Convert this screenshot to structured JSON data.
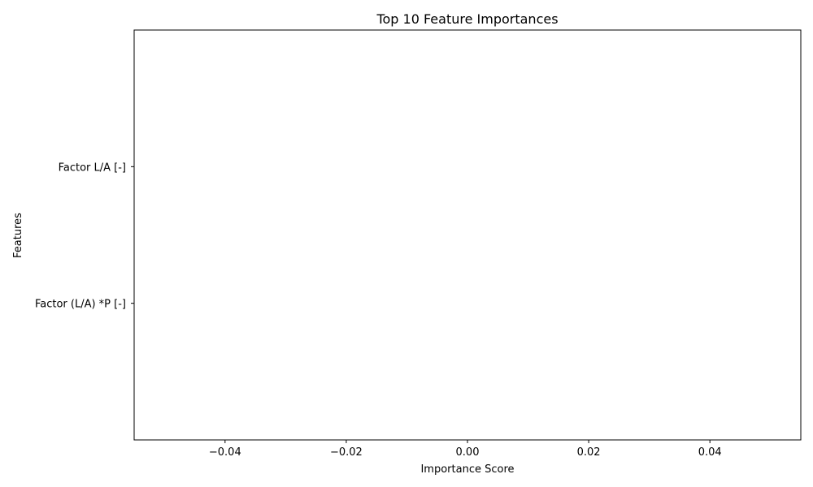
{
  "chart_data": {
    "type": "bar",
    "orientation": "horizontal",
    "title": "Top 10 Feature Importances",
    "xlabel": "Importance Score",
    "ylabel": "Features",
    "categories": [
      "Factor (L/A) *P [-]",
      "Factor L/A [-]"
    ],
    "values": [
      0,
      0
    ],
    "xlim": [
      -0.055,
      0.055
    ],
    "xticks": [
      -0.04,
      -0.02,
      0.0,
      0.02,
      0.04
    ],
    "xtick_labels": [
      "−0.04",
      "−0.02",
      "0.00",
      "0.02",
      "0.04"
    ],
    "grid": false,
    "legend": "none"
  }
}
